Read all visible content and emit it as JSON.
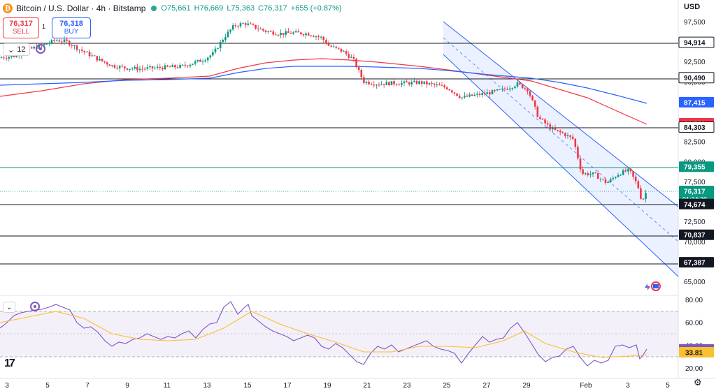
{
  "header": {
    "symbol": "Bitcoin / U.S. Dollar · 4h · Bitstamp",
    "open": "O75,661",
    "high": "H76,669",
    "low": "L75,363",
    "close": "C76,317",
    "change": "+655 (+0.87%)"
  },
  "trade": {
    "sell_price": "76,317",
    "sell_label": "SELL",
    "buy_price": "76,318",
    "buy_label": "BUY",
    "spread": "1"
  },
  "indicator_badge": "12",
  "currency": "USD",
  "price_axis": {
    "ticks": [
      "97,500",
      "95,000",
      "92,500",
      "90,000",
      "87,500",
      "85,000",
      "82,500",
      "80,000",
      "77,500",
      "75,000",
      "72,500",
      "70,000",
      "67,500",
      "65,000"
    ],
    "labels": [
      {
        "text": "94,914",
        "value": 94914,
        "bg": "#ffffff",
        "fg": "#131722",
        "bordered": true
      },
      {
        "text": "90,490",
        "value": 90490,
        "bg": "#ffffff",
        "fg": "#131722",
        "bordered": true
      },
      {
        "text": "87,415",
        "value": 87415,
        "bg": "#2962ff",
        "fg": "#ffffff"
      },
      {
        "text": "84,789",
        "value": 84789,
        "bg": "#f23645",
        "fg": "#ffffff"
      },
      {
        "text": "84,303",
        "value": 84303,
        "bg": "#ffffff",
        "fg": "#131722",
        "bordered": true
      },
      {
        "text": "79,355",
        "value": 79355,
        "bg": "#089981",
        "fg": "#ffffff"
      },
      {
        "text": "76,317",
        "value": 76317,
        "bg": "#089981",
        "fg": "#ffffff",
        "sub": "01:34:29"
      },
      {
        "text": "74,674",
        "value": 74674,
        "bg": "#131722",
        "fg": "#ffffff"
      },
      {
        "text": "70,837",
        "value": 70837,
        "bg": "#131722",
        "fg": "#ffffff"
      },
      {
        "text": "67,387",
        "value": 67387,
        "bg": "#131722",
        "fg": "#ffffff"
      }
    ]
  },
  "rsi_axis": {
    "ticks": [
      "80.00",
      "60.00",
      "40.00",
      "20.00"
    ],
    "labels": [
      {
        "text": "36.28",
        "value": 36.28,
        "bg": "#7e57c2",
        "fg": "#ffffff"
      },
      {
        "text": "33.81",
        "value": 33.81,
        "bg": "#fbc02d",
        "fg": "#131722"
      }
    ]
  },
  "time_axis": [
    "3",
    "5",
    "7",
    "9",
    "11",
    "13",
    "15",
    "17",
    "19",
    "21",
    "23",
    "25",
    "27",
    "29",
    "Feb",
    "3",
    "5"
  ],
  "colors": {
    "up": "#089981",
    "down": "#f23645",
    "ma_red": "#f23645",
    "ma_blue": "#2962ff",
    "channel": "#2962ff",
    "rsi": "#7e57c2",
    "rsi_ma": "#fbc02d"
  },
  "icons": {
    "logo": "tradingview-logo-icon",
    "settings": "gear-icon"
  }
}
